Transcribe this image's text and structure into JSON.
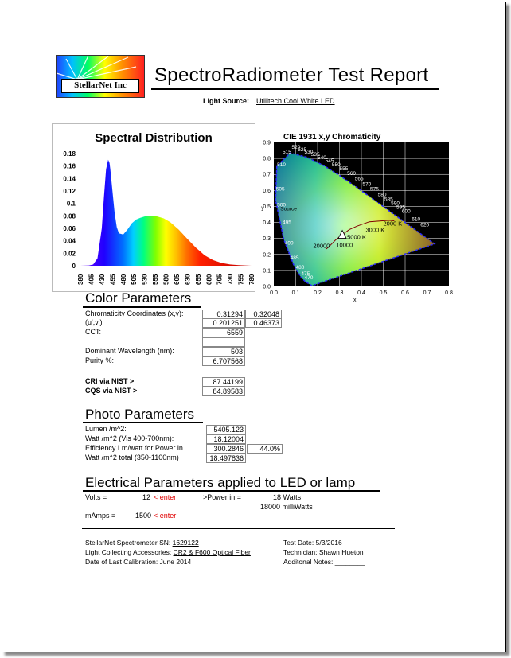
{
  "header": {
    "logo_text": "StellarNet Inc",
    "title": "SpectroRadiometer Test Report",
    "light_source_label": "Light Source:",
    "light_source_value": "Utilitech Cool White LED"
  },
  "spectral_chart": {
    "title": "Spectral Distribution",
    "chart_data": {
      "type": "area",
      "title": "Spectral Distribution",
      "xlabel": "",
      "ylabel": "",
      "x_ticks": [
        380,
        405,
        430,
        455,
        480,
        505,
        530,
        555,
        580,
        605,
        630,
        655,
        680,
        705,
        730,
        755,
        780
      ],
      "y_ticks": [
        0,
        0.02,
        0.04,
        0.06,
        0.08,
        0.1,
        0.12,
        0.14,
        0.16,
        0.18
      ],
      "xlim": [
        380,
        780
      ],
      "ylim": [
        0,
        0.18
      ],
      "x": [
        380,
        400,
        410,
        420,
        430,
        435,
        440,
        445,
        448,
        450,
        455,
        460,
        465,
        470,
        480,
        490,
        500,
        510,
        520,
        530,
        545,
        560,
        575,
        590,
        610,
        630,
        650,
        670,
        690,
        710,
        730,
        750,
        780
      ],
      "values": [
        0,
        0.0005,
        0.002,
        0.012,
        0.06,
        0.11,
        0.155,
        0.17,
        0.165,
        0.155,
        0.12,
        0.085,
        0.062,
        0.052,
        0.05,
        0.058,
        0.068,
        0.074,
        0.077,
        0.079,
        0.08,
        0.079,
        0.076,
        0.07,
        0.058,
        0.043,
        0.029,
        0.017,
        0.009,
        0.0045,
        0.002,
        0.001,
        0
      ]
    }
  },
  "cie_chart": {
    "title": "CIE 1931  x,y Chromaticity",
    "chart_data": {
      "type": "scatter",
      "title": "CIE 1931  x,y Chromaticity",
      "xlabel": "x",
      "ylabel": "y",
      "x_ticks": [
        "0.0",
        "0.1",
        "0.2",
        "0.3",
        "0.4",
        "0.5",
        "0.6",
        "0.7",
        "0.8"
      ],
      "y_ticks": [
        "0.0",
        "0.1",
        "0.2",
        "0.3",
        "0.4",
        "0.5",
        "0.6",
        "0.7",
        "0.8",
        "0.9"
      ],
      "xlim": [
        0,
        0.8
      ],
      "ylim": [
        0,
        0.9
      ],
      "wavelength_labels": [
        "520",
        "525",
        "530",
        "535",
        "540",
        "545",
        "550",
        "555",
        "560",
        "565",
        "570",
        "575",
        "580",
        "585",
        "590",
        "595",
        "600",
        "610",
        "620",
        "515",
        "510",
        "505",
        "500",
        "495",
        "490",
        "485",
        "480",
        "475",
        "470"
      ],
      "cct_labels": [
        "2000 K",
        "3000 K",
        "5000 K",
        "10000",
        "20000"
      ],
      "source_label": "Source",
      "point": {
        "x": 0.31294,
        "y": 0.32048
      }
    }
  },
  "color_params": {
    "title": "Color Parameters",
    "chromaticity_label": "Chromaticity Coordinates (x,y):",
    "x": "0.31294",
    "y": "0.32048",
    "uv_label": "(u',v')",
    "u": "0.201251",
    "v": "0.46373",
    "cct_label": "CCT:",
    "cct": "6559",
    "dominant_label": "Dominant Wavelength (nm):",
    "dominant": "503",
    "purity_label": "Purity %:",
    "purity": "6.707568",
    "cri_label": "CRI  via NIST >",
    "cri": "87.44199",
    "cqs_label": "CQS via NIST >",
    "cqs": "84.89583"
  },
  "photo_params": {
    "title": "Photo Parameters",
    "lumen_label": "Lumen /m^2:",
    "lumen": "5405.123",
    "watt_label": "Watt    /m^2  (Vis 400-700nm):",
    "watt": "18.12004",
    "eff_label": "Efficiency Lm/watt for Power in",
    "eff": "300.2846",
    "eff_pct": "44.0%",
    "watt_total_label": "Watt /m^2 total (350-1100nm)",
    "watt_total": "18.497836"
  },
  "electrical": {
    "title": "Electrical Parameters applied to LED or lamp",
    "volts_label": "Volts =",
    "volts": "12",
    "enter1": "< enter",
    "power_label": ">Power in  =",
    "power_watts": "18 Watts",
    "power_mw": "18000 milliWatts",
    "mamps_label": "mAmps  =",
    "mamps": "1500",
    "enter2": "< enter"
  },
  "footer": {
    "sn_label": "StellarNet Spectrometer SN:",
    "sn": "1629122",
    "acc_label": "Light Collecting Accessories:",
    "acc": "CR2 & F600 Optical Fiber",
    "cal": "Date of Last Calibration: June 2014",
    "test_date": "Test Date: 5/3/2016",
    "tech": "Technician:  Shawn Hueton",
    "notes": "Additonal Notes: ________"
  },
  "colors": {
    "bg": "#ffffff",
    "text": "#000000",
    "enter": "#e00000",
    "cie_bg": "#000000"
  }
}
